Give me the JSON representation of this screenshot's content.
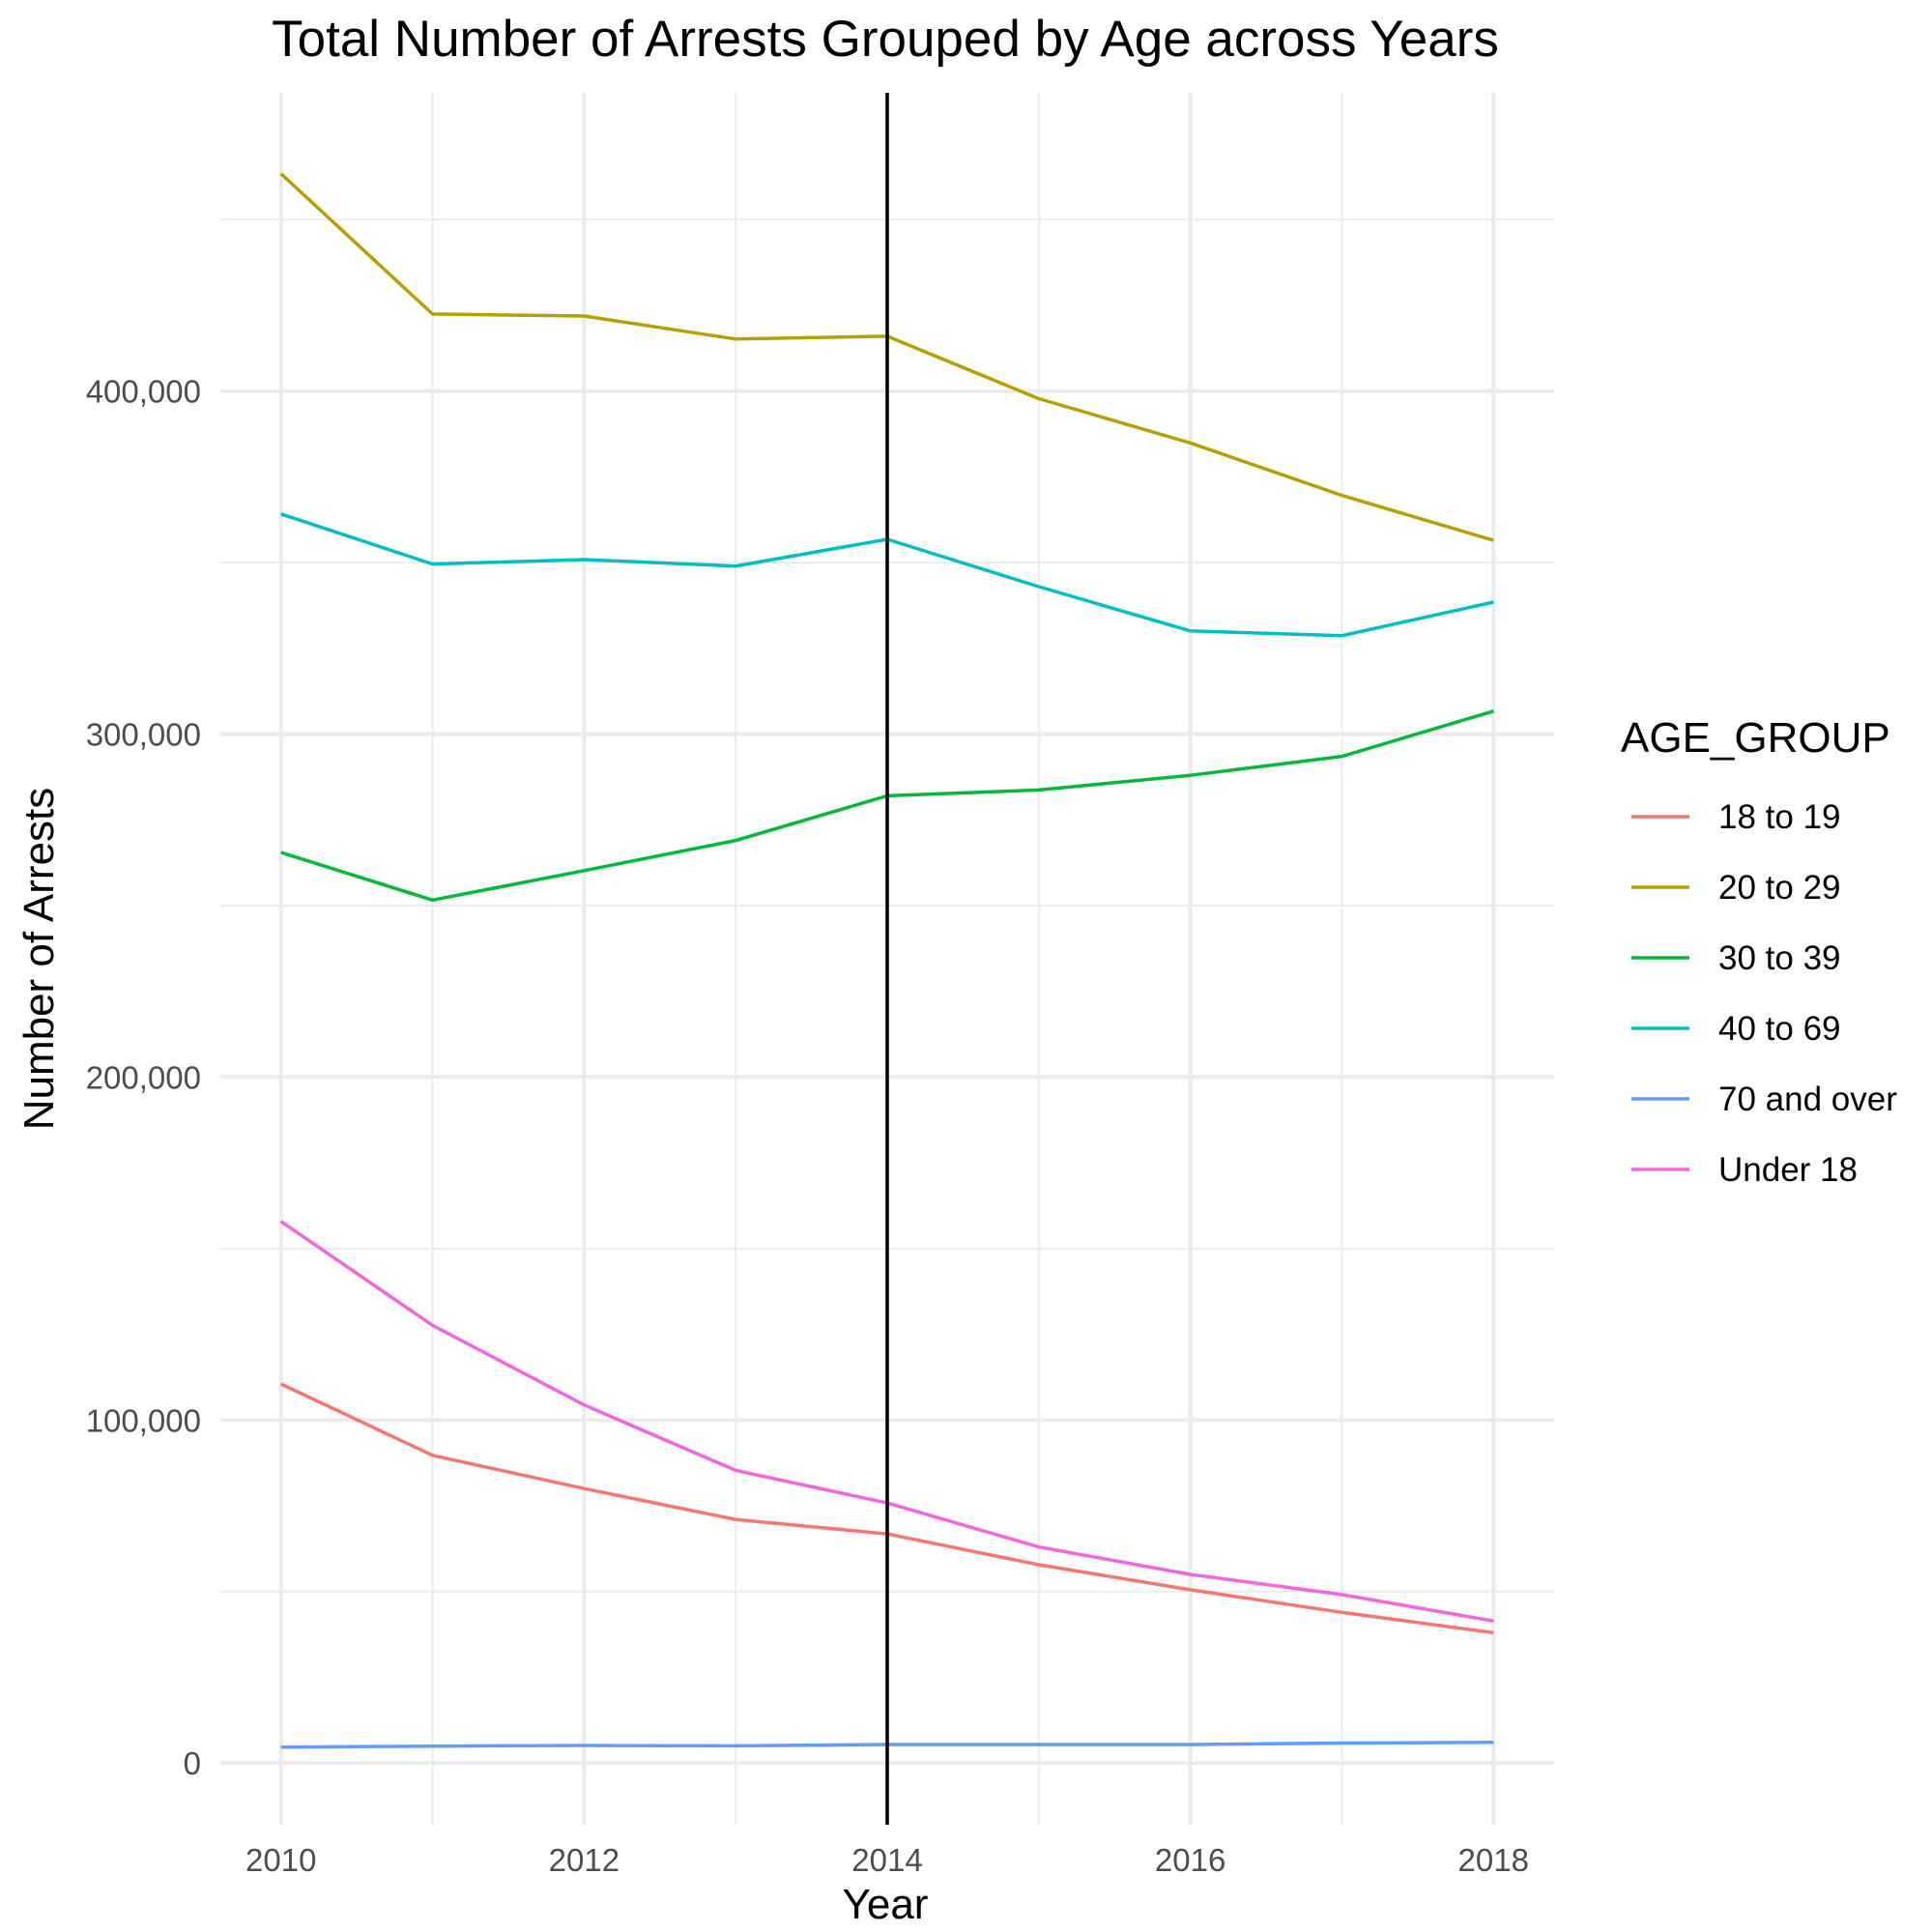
{
  "chart_data": {
    "type": "line",
    "title": "Total Number of Arrests Grouped by Age across Years",
    "xlabel": "Year",
    "ylabel": "Number of Arrests",
    "x": [
      2010,
      2011,
      2012,
      2013,
      2014,
      2015,
      2016,
      2017,
      2018
    ],
    "x_ticks": [
      "2010",
      "2012",
      "2014",
      "2016",
      "2018"
    ],
    "y_ticks": [
      "0",
      "100,000",
      "200,000",
      "300,000",
      "400,000"
    ],
    "xlim": [
      2009.6,
      2018.4
    ],
    "ylim": [
      -18000,
      487000
    ],
    "grid": true,
    "vline_x": 2014,
    "legend": {
      "title": "AGE_GROUP",
      "position": "right"
    },
    "series": [
      {
        "name": "18 to 19",
        "color": "#F8766D",
        "values": [
          110500,
          89700,
          80000,
          71000,
          66800,
          57800,
          50500,
          43900,
          38000
        ]
      },
      {
        "name": "20 to 29",
        "color": "#B79F00",
        "values": [
          463400,
          422500,
          421900,
          415200,
          416000,
          397800,
          384900,
          369600,
          356500
        ]
      },
      {
        "name": "30 to 39",
        "color": "#00BA38",
        "values": [
          265500,
          251600,
          260200,
          269000,
          282000,
          283700,
          288000,
          293500,
          306700
        ]
      },
      {
        "name": "40 to 69",
        "color": "#00BFC4",
        "values": [
          364200,
          349600,
          350900,
          349000,
          356800,
          343000,
          330100,
          328700,
          338500
        ]
      },
      {
        "name": "70 and over",
        "color": "#619CFF",
        "values": [
          4600,
          4900,
          5100,
          5000,
          5400,
          5400,
          5400,
          5800,
          6000
        ]
      },
      {
        "name": "Under 18",
        "color": "#F564E3",
        "values": [
          157900,
          127600,
          104400,
          85300,
          75800,
          63000,
          55000,
          49100,
          41400
        ]
      }
    ]
  }
}
